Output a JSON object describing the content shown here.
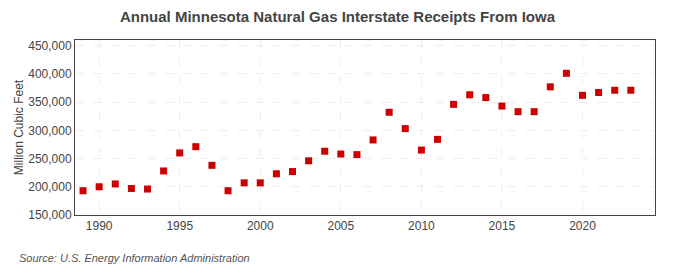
{
  "chart_data": {
    "type": "scatter",
    "title": "Annual Minnesota Natural Gas Interstate Receipts From Iowa",
    "ylabel": "Million Cubic Feet",
    "annotations": [
      "Source: U.S. Energy Information Administration"
    ],
    "x": [
      1989,
      1990,
      1991,
      1992,
      1993,
      1994,
      1995,
      1996,
      1997,
      1998,
      1999,
      2000,
      2001,
      2002,
      2003,
      2004,
      2005,
      2006,
      2007,
      2008,
      2009,
      2010,
      2011,
      2012,
      2013,
      2014,
      2015,
      2016,
      2017,
      2018,
      2019,
      2020,
      2021,
      2022,
      2023
    ],
    "values": [
      193000,
      200000,
      205000,
      197000,
      196000,
      228000,
      260000,
      271000,
      238000,
      193000,
      207000,
      207000,
      223000,
      227000,
      246000,
      263000,
      258000,
      257000,
      283000,
      332000,
      303000,
      265000,
      284000,
      346000,
      363000,
      358000,
      343000,
      333000,
      333000,
      377000,
      401000,
      362000,
      367000,
      371000,
      371000
    ],
    "color": "#cc0000",
    "marker": "square",
    "xlim": [
      1988.5,
      2024.5
    ],
    "xticks": [
      1990,
      1995,
      2000,
      2005,
      2010,
      2015,
      2020
    ],
    "ylim": [
      150000,
      460000
    ],
    "yticks": [
      {
        "value": 150000,
        "label": "150,000"
      },
      {
        "value": 200000,
        "label": "200,000"
      },
      {
        "value": 250000,
        "label": "250,000"
      },
      {
        "value": 300000,
        "label": "300,000"
      },
      {
        "value": 350000,
        "label": "350,000"
      },
      {
        "value": 400000,
        "label": "400,000"
      },
      {
        "value": 450000,
        "label": "450,000"
      }
    ],
    "grid": true
  }
}
